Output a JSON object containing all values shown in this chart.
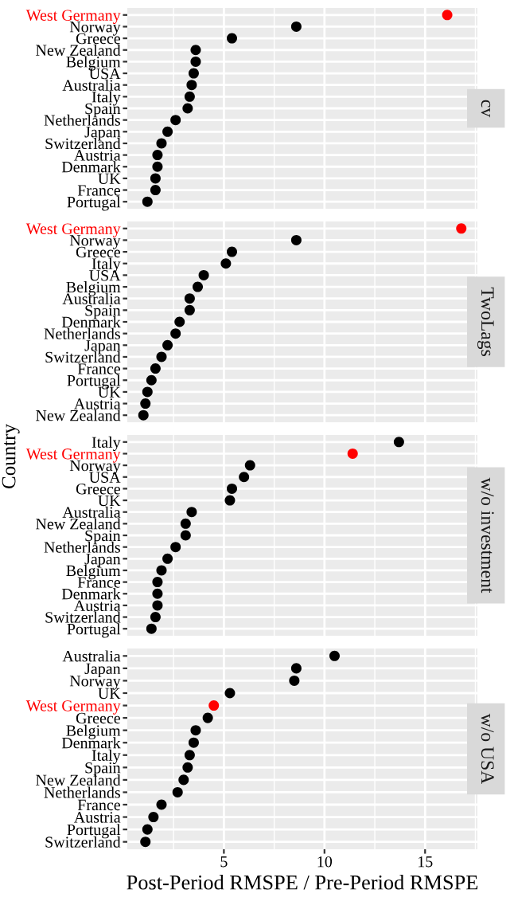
{
  "chart_data": [
    {
      "type": "scatter",
      "orientation": "horizontal",
      "title": "cv",
      "marker": "circle",
      "grid": true,
      "tick_labels": "y",
      "categories": [
        "West Germany",
        "Norway",
        "Greece",
        "New Zealand",
        "Belgium",
        "USA",
        "Australia",
        "Italy",
        "Spain",
        "Netherlands",
        "Japan",
        "Switzerland",
        "Austria",
        "Denmark",
        "UK",
        "France",
        "Portugal"
      ],
      "values": [
        16.1,
        8.6,
        5.4,
        3.6,
        3.6,
        3.5,
        3.4,
        3.3,
        3.2,
        2.6,
        2.2,
        1.9,
        1.7,
        1.7,
        1.6,
        1.6,
        1.2
      ],
      "colors": [
        "#ff0000",
        "#000000",
        "#000000",
        "#000000",
        "#000000",
        "#000000",
        "#000000",
        "#000000",
        "#000000",
        "#000000",
        "#000000",
        "#000000",
        "#000000",
        "#000000",
        "#000000",
        "#000000",
        "#000000"
      ],
      "xlim": [
        0.2,
        17.6
      ],
      "xticks": [
        5,
        10,
        15
      ]
    },
    {
      "type": "scatter",
      "orientation": "horizontal",
      "title": "TwoLags",
      "ylabel": "Country",
      "marker": "circle",
      "grid": true,
      "tick_labels": "y",
      "categories": [
        "West Germany",
        "Norway",
        "Greece",
        "Italy",
        "USA",
        "Belgium",
        "Australia",
        "Spain",
        "Denmark",
        "Netherlands",
        "Japan",
        "Switzerland",
        "France",
        "Portugal",
        "UK",
        "Austria",
        "New Zealand"
      ],
      "values": [
        16.8,
        8.6,
        5.4,
        5.1,
        4.0,
        3.7,
        3.3,
        3.3,
        2.8,
        2.6,
        2.2,
        1.9,
        1.6,
        1.4,
        1.2,
        1.1,
        1.0
      ],
      "colors": [
        "#ff0000",
        "#000000",
        "#000000",
        "#000000",
        "#000000",
        "#000000",
        "#000000",
        "#000000",
        "#000000",
        "#000000",
        "#000000",
        "#000000",
        "#000000",
        "#000000",
        "#000000",
        "#000000",
        "#000000"
      ],
      "xlim": [
        0.2,
        17.6
      ],
      "xticks": [
        5,
        10,
        15
      ]
    },
    {
      "type": "scatter",
      "orientation": "horizontal",
      "title": "w/o investment",
      "marker": "circle",
      "grid": true,
      "tick_labels": "y",
      "categories": [
        "Italy",
        "West Germany",
        "Norway",
        "USA",
        "Greece",
        "UK",
        "Australia",
        "New Zealand",
        "Spain",
        "Netherlands",
        "Japan",
        "Belgium",
        "France",
        "Denmark",
        "Austria",
        "Switzerland",
        "Portugal"
      ],
      "values": [
        13.7,
        11.4,
        6.3,
        6.0,
        5.4,
        5.3,
        3.4,
        3.1,
        3.1,
        2.6,
        2.2,
        1.9,
        1.7,
        1.7,
        1.7,
        1.6,
        1.4
      ],
      "colors": [
        "#000000",
        "#ff0000",
        "#000000",
        "#000000",
        "#000000",
        "#000000",
        "#000000",
        "#000000",
        "#000000",
        "#000000",
        "#000000",
        "#000000",
        "#000000",
        "#000000",
        "#000000",
        "#000000",
        "#000000"
      ],
      "xlim": [
        0.2,
        17.6
      ],
      "xticks": [
        5,
        10,
        15
      ]
    },
    {
      "type": "scatter",
      "orientation": "horizontal",
      "title": "w/o USA",
      "xlabel": "Post-Period RMSPE / Pre-Period RMSPE",
      "marker": "circle",
      "grid": true,
      "categories": [
        "Australia",
        "Japan",
        "Norway",
        "UK",
        "West Germany",
        "Greece",
        "Belgium",
        "Denmark",
        "Italy",
        "Spain",
        "New Zealand",
        "Netherlands",
        "France",
        "Austria",
        "Portugal",
        "Switzerland"
      ],
      "values": [
        10.5,
        8.6,
        8.5,
        5.3,
        4.5,
        4.2,
        3.6,
        3.5,
        3.3,
        3.2,
        3.0,
        2.7,
        1.9,
        1.5,
        1.2,
        1.1
      ],
      "colors": [
        "#000000",
        "#000000",
        "#000000",
        "#000000",
        "#ff0000",
        "#000000",
        "#000000",
        "#000000",
        "#000000",
        "#000000",
        "#000000",
        "#000000",
        "#000000",
        "#000000",
        "#000000",
        "#000000"
      ],
      "xlim": [
        0.2,
        17.6
      ],
      "xticks": [
        5,
        10,
        15
      ]
    }
  ]
}
